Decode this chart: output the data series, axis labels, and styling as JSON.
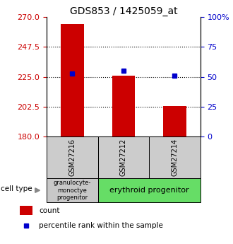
{
  "title": "GDS853 / 1425059_at",
  "samples": [
    "GSM27216",
    "GSM27212",
    "GSM27214"
  ],
  "bar_values": [
    265,
    226,
    203
  ],
  "bar_base": 180,
  "percentile_values": [
    53,
    55,
    51
  ],
  "left_ylim": [
    180,
    270
  ],
  "left_yticks": [
    180,
    202.5,
    225,
    247.5,
    270
  ],
  "right_ylim": [
    0,
    100
  ],
  "right_yticks": [
    0,
    25,
    50,
    75,
    100
  ],
  "bar_color": "#cc0000",
  "dot_color": "#0000cc",
  "bar_width": 0.45,
  "cell_type_1_color": "#c8c8c8",
  "cell_type_2_color": "#66dd66",
  "grid_linestyle": ":",
  "grid_linewidth": 0.8,
  "title_fontsize": 10,
  "tick_fontsize": 8,
  "legend_fontsize": 7.5,
  "sample_fontsize": 7,
  "celltype_fontsize": 6,
  "celltype2_fontsize": 8,
  "arrow_color": "#888888"
}
